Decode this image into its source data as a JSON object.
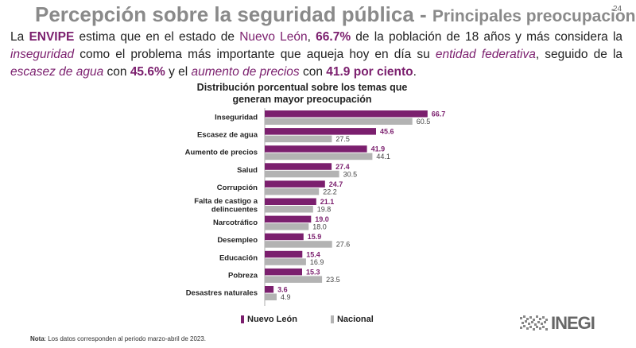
{
  "page": {
    "title": "Percepción sobre la seguridad pública - ",
    "subtitle": "Principales preocupaciones",
    "number": "24"
  },
  "intro": {
    "t1": "La ",
    "survey": "ENVIPE",
    "t2": " estima que en el estado de ",
    "state": "Nuevo León",
    "t3": ", ",
    "pct1": "66.7%",
    "t4": " de la población de 18 años y más considera la ",
    "issue1": "inseguridad",
    "t5": " como el problema más importante que aqueja hoy en día su ",
    "scope": "entidad federativa",
    "t6": ", seguido de la ",
    "issue2": "escasez de agua",
    "t7": " con ",
    "pct2": "45.6%",
    "t8": " y el ",
    "issue3": "aumento de precios",
    "t9": " con ",
    "pct3": "41.9 por ciento",
    "t10": "."
  },
  "chart_data": {
    "type": "bar",
    "orientation": "horizontal",
    "title": "Distribución porcentual sobre los temas que generan mayor preocupación",
    "categories": [
      "Inseguridad",
      "Escasez de agua",
      "Aumento de precios",
      "Salud",
      "Corrupción",
      "Falta de castigo a delincuentes",
      "Narcotráfico",
      "Desempleo",
      "Educación",
      "Pobreza",
      "Desastres naturales"
    ],
    "category_lines": [
      [
        "Inseguridad"
      ],
      [
        "Escasez de agua"
      ],
      [
        "Aumento de precios"
      ],
      [
        "Salud"
      ],
      [
        "Corrupción"
      ],
      [
        "Falta de castigo a",
        "delincuentes"
      ],
      [
        "Narcotráfico"
      ],
      [
        "Desempleo"
      ],
      [
        "Educación"
      ],
      [
        "Pobreza"
      ],
      [
        "Desastres naturales"
      ]
    ],
    "series": [
      {
        "name": "Nuevo León",
        "color": "#7b1f6e",
        "values": [
          66.7,
          45.6,
          41.9,
          27.4,
          24.7,
          21.1,
          19.0,
          15.9,
          15.4,
          15.3,
          3.6
        ],
        "labels": [
          "66.7",
          "45.6",
          "41.9",
          "27.4",
          "24.7",
          "21.1",
          "19.0",
          "15.9",
          "15.4",
          "15.3",
          "3.6"
        ]
      },
      {
        "name": "Nacional",
        "color": "#b3b3b3",
        "values": [
          60.5,
          27.5,
          44.1,
          30.5,
          22.2,
          19.8,
          18.0,
          27.6,
          16.9,
          23.5,
          4.9
        ],
        "labels": [
          "60.5",
          "27.5",
          "44.1",
          "30.5",
          "22.2",
          "19.8",
          "18.0",
          "27.6",
          "16.9",
          "23.5",
          "4.9"
        ]
      }
    ],
    "xlim": [
      0,
      70
    ],
    "grid": false
  },
  "legend": {
    "nl": "Nuevo León",
    "nacional": "Nacional"
  },
  "note": {
    "label": "Nota",
    "text": ": Los datos corresponden al periodo marzo-abril de 2023."
  },
  "logo": {
    "text": "INEGI"
  },
  "colors": {
    "accent": "#7b1f6e",
    "gray": "#b3b3b3"
  }
}
